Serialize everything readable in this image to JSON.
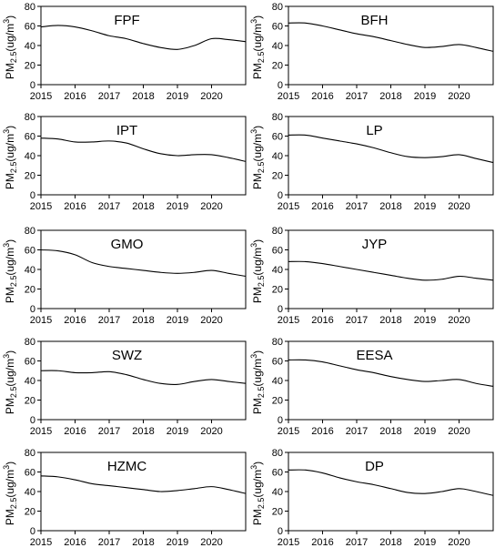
{
  "y_label_parts": {
    "main": "PM",
    "sub": "2.5",
    "unit_open": "(ug/m",
    "sup": "3",
    "unit_close": ")"
  },
  "chart_data": [
    {
      "type": "line",
      "title": "FPF",
      "xlim": [
        2015,
        2021
      ],
      "ylim": [
        0,
        80
      ],
      "yticks": [
        0,
        20,
        40,
        60,
        80
      ],
      "xticks": [
        2015,
        2016,
        2017,
        2018,
        2019,
        2020
      ],
      "x": [
        2015.0,
        2015.5,
        2016.0,
        2016.5,
        2017.0,
        2017.5,
        2018.0,
        2018.5,
        2019.0,
        2019.5,
        2020.0,
        2020.5,
        2021.0
      ],
      "series": [
        {
          "values": [
            59,
            60.5,
            59,
            55,
            50,
            47,
            42,
            38,
            36,
            40,
            47,
            46,
            44
          ]
        }
      ]
    },
    {
      "type": "line",
      "title": "BFH",
      "xlim": [
        2015,
        2021
      ],
      "ylim": [
        0,
        80
      ],
      "yticks": [
        0,
        20,
        40,
        60,
        80
      ],
      "xticks": [
        2015,
        2016,
        2017,
        2018,
        2019,
        2020
      ],
      "x": [
        2015.0,
        2015.5,
        2016.0,
        2016.5,
        2017.0,
        2017.5,
        2018.0,
        2018.5,
        2019.0,
        2019.5,
        2020.0,
        2020.5,
        2021.0
      ],
      "series": [
        {
          "values": [
            63,
            63,
            60,
            56,
            52,
            49,
            45,
            41,
            38,
            39,
            41,
            38,
            34
          ]
        }
      ]
    },
    {
      "type": "line",
      "title": "IPT",
      "xlim": [
        2015,
        2021
      ],
      "ylim": [
        0,
        80
      ],
      "yticks": [
        0,
        20,
        40,
        60,
        80
      ],
      "xticks": [
        2015,
        2016,
        2017,
        2018,
        2019,
        2020
      ],
      "x": [
        2015.0,
        2015.5,
        2016.0,
        2016.5,
        2017.0,
        2017.5,
        2018.0,
        2018.5,
        2019.0,
        2019.5,
        2020.0,
        2020.5,
        2021.0
      ],
      "series": [
        {
          "values": [
            58,
            57,
            54,
            54,
            55,
            53,
            47,
            42,
            40,
            41,
            41,
            38,
            34
          ]
        }
      ]
    },
    {
      "type": "line",
      "title": "LP",
      "xlim": [
        2015,
        2021
      ],
      "ylim": [
        0,
        80
      ],
      "yticks": [
        0,
        20,
        40,
        60,
        80
      ],
      "xticks": [
        2015,
        2016,
        2017,
        2018,
        2019,
        2020
      ],
      "x": [
        2015.0,
        2015.5,
        2016.0,
        2016.5,
        2017.0,
        2017.5,
        2018.0,
        2018.5,
        2019.0,
        2019.5,
        2020.0,
        2020.5,
        2021.0
      ],
      "series": [
        {
          "values": [
            61,
            61,
            58,
            55,
            52,
            48,
            43,
            39,
            38,
            39,
            41,
            37,
            33
          ]
        }
      ]
    },
    {
      "type": "line",
      "title": "GMO",
      "xlim": [
        2015,
        2021
      ],
      "ylim": [
        0,
        80
      ],
      "yticks": [
        0,
        20,
        40,
        60,
        80
      ],
      "xticks": [
        2015,
        2016,
        2017,
        2018,
        2019,
        2020
      ],
      "x": [
        2015.0,
        2015.5,
        2016.0,
        2016.5,
        2017.0,
        2017.5,
        2018.0,
        2018.5,
        2019.0,
        2019.5,
        2020.0,
        2020.5,
        2021.0
      ],
      "series": [
        {
          "values": [
            60,
            59,
            55,
            47,
            43,
            41,
            39,
            37,
            36,
            37,
            39,
            36,
            33
          ]
        }
      ]
    },
    {
      "type": "line",
      "title": "JYP",
      "xlim": [
        2015,
        2021
      ],
      "ylim": [
        0,
        80
      ],
      "yticks": [
        0,
        20,
        40,
        60,
        80
      ],
      "xticks": [
        2015,
        2016,
        2017,
        2018,
        2019,
        2020
      ],
      "x": [
        2015.0,
        2015.5,
        2016.0,
        2016.5,
        2017.0,
        2017.5,
        2018.0,
        2018.5,
        2019.0,
        2019.5,
        2020.0,
        2020.5,
        2021.0
      ],
      "series": [
        {
          "values": [
            48,
            48,
            46,
            43,
            40,
            37,
            34,
            31,
            29,
            30,
            33,
            31,
            29
          ]
        }
      ]
    },
    {
      "type": "line",
      "title": "SWZ",
      "xlim": [
        2015,
        2021
      ],
      "ylim": [
        0,
        80
      ],
      "yticks": [
        0,
        20,
        40,
        60,
        80
      ],
      "xticks": [
        2015,
        2016,
        2017,
        2018,
        2019,
        2020
      ],
      "x": [
        2015.0,
        2015.5,
        2016.0,
        2016.5,
        2017.0,
        2017.5,
        2018.0,
        2018.5,
        2019.0,
        2019.5,
        2020.0,
        2020.5,
        2021.0
      ],
      "series": [
        {
          "values": [
            50,
            50,
            48,
            48,
            49,
            46,
            41,
            37,
            36,
            39,
            41,
            39,
            37
          ]
        }
      ]
    },
    {
      "type": "line",
      "title": "EESA",
      "xlim": [
        2015,
        2021
      ],
      "ylim": [
        0,
        80
      ],
      "yticks": [
        0,
        20,
        40,
        60,
        80
      ],
      "xticks": [
        2015,
        2016,
        2017,
        2018,
        2019,
        2020
      ],
      "x": [
        2015.0,
        2015.5,
        2016.0,
        2016.5,
        2017.0,
        2017.5,
        2018.0,
        2018.5,
        2019.0,
        2019.5,
        2020.0,
        2020.5,
        2021.0
      ],
      "series": [
        {
          "values": [
            61,
            61,
            59,
            55,
            51,
            48,
            44,
            41,
            39,
            40,
            41,
            37,
            34
          ]
        }
      ]
    },
    {
      "type": "line",
      "title": "HZMC",
      "xlim": [
        2015,
        2021
      ],
      "ylim": [
        0,
        80
      ],
      "yticks": [
        0,
        20,
        40,
        60,
        80
      ],
      "xticks": [
        2015,
        2016,
        2017,
        2018,
        2019,
        2020
      ],
      "x": [
        2015.0,
        2015.5,
        2016.0,
        2016.5,
        2017.0,
        2017.5,
        2018.0,
        2018.5,
        2019.0,
        2019.5,
        2020.0,
        2020.5,
        2021.0
      ],
      "series": [
        {
          "values": [
            56,
            55,
            52,
            48,
            46,
            44,
            42,
            40,
            41,
            43,
            45,
            42,
            38
          ]
        }
      ]
    },
    {
      "type": "line",
      "title": "DP",
      "xlim": [
        2015,
        2021
      ],
      "ylim": [
        0,
        80
      ],
      "yticks": [
        0,
        20,
        40,
        60,
        80
      ],
      "xticks": [
        2015,
        2016,
        2017,
        2018,
        2019,
        2020
      ],
      "x": [
        2015.0,
        2015.5,
        2016.0,
        2016.5,
        2017.0,
        2017.5,
        2018.0,
        2018.5,
        2019.0,
        2019.5,
        2020.0,
        2020.5,
        2021.0
      ],
      "series": [
        {
          "values": [
            62,
            62,
            59,
            54,
            50,
            47,
            43,
            39,
            38,
            40,
            43,
            40,
            36
          ]
        }
      ]
    }
  ]
}
